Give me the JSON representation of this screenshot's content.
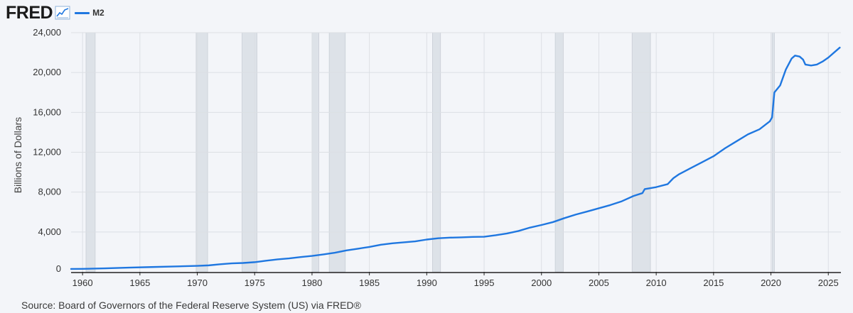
{
  "header": {
    "logo_text": "FRED",
    "logo_icon": "line-graph-icon",
    "legend_label": "M2"
  },
  "source": "Source: Board of Governors of the Federal Reserve System (US) via FRED®",
  "colors": {
    "line": "#1f77e0",
    "recession": "#dde2e8",
    "grid": "#dcdfe4",
    "axis": "#222222",
    "background": "#f3f5f9"
  },
  "chart_data": {
    "type": "line",
    "ylabel": "Billions of Dollars",
    "xlabel": "",
    "xlim": [
      1959,
      2026.1
    ],
    "ylim": [
      0,
      24000
    ],
    "grid": true,
    "legend": "top-left",
    "x_ticks": [
      1960,
      1965,
      1970,
      1975,
      1980,
      1985,
      1990,
      1995,
      2000,
      2005,
      2010,
      2015,
      2020,
      2025
    ],
    "y_ticks": [
      0,
      4000,
      8000,
      12000,
      16000,
      20000,
      24000
    ],
    "y_tick_labels": [
      "0",
      "4,000",
      "8,000",
      "12,000",
      "16,000",
      "20,000",
      "24,000"
    ],
    "recessions": [
      [
        1960.3,
        1961.1
      ],
      [
        1969.9,
        1970.9
      ],
      [
        1973.9,
        1975.2
      ],
      [
        1980.0,
        1980.6
      ],
      [
        1981.5,
        1982.9
      ],
      [
        1990.5,
        1991.2
      ],
      [
        2001.2,
        2001.9
      ],
      [
        2007.9,
        2009.5
      ],
      [
        2020.1,
        2020.3
      ]
    ],
    "series": [
      {
        "name": "M2",
        "x": [
          1959,
          1960,
          1962,
          1964,
          1966,
          1968,
          1970,
          1971,
          1972,
          1973,
          1974,
          1975,
          1976,
          1977,
          1978,
          1979,
          1980,
          1981,
          1982,
          1983,
          1984,
          1985,
          1986,
          1987,
          1988,
          1989,
          1990,
          1991,
          1992,
          1993,
          1994,
          1995,
          1996,
          1997,
          1998,
          1999,
          2000,
          2001,
          2002,
          2003,
          2004,
          2005,
          2006,
          2007,
          2008,
          2008.8,
          2009,
          2010,
          2011,
          2011.5,
          2012,
          2013,
          2014,
          2015,
          2016,
          2017,
          2018,
          2019,
          2019.9,
          2020.1,
          2020.3,
          2020.8,
          2021.3,
          2021.8,
          2022.1,
          2022.5,
          2022.8,
          2023.0,
          2023.5,
          2024.0,
          2024.5,
          2025.0,
          2025.5,
          2026.0
        ],
        "y": [
          290,
          300,
          350,
          420,
          480,
          540,
          600,
          650,
          760,
          850,
          890,
          970,
          1120,
          1250,
          1350,
          1480,
          1600,
          1750,
          1920,
          2150,
          2320,
          2500,
          2720,
          2860,
          2960,
          3060,
          3240,
          3370,
          3430,
          3460,
          3500,
          3520,
          3670,
          3850,
          4100,
          4440,
          4700,
          4990,
          5390,
          5750,
          6060,
          6380,
          6700,
          7080,
          7600,
          7900,
          8300,
          8500,
          8800,
          9400,
          9800,
          10400,
          11000,
          11600,
          12400,
          13100,
          13800,
          14300,
          15100,
          15500,
          18000,
          18700,
          20300,
          21400,
          21700,
          21600,
          21300,
          20800,
          20700,
          20800,
          21100,
          21500,
          22000,
          22500
        ]
      }
    ]
  }
}
